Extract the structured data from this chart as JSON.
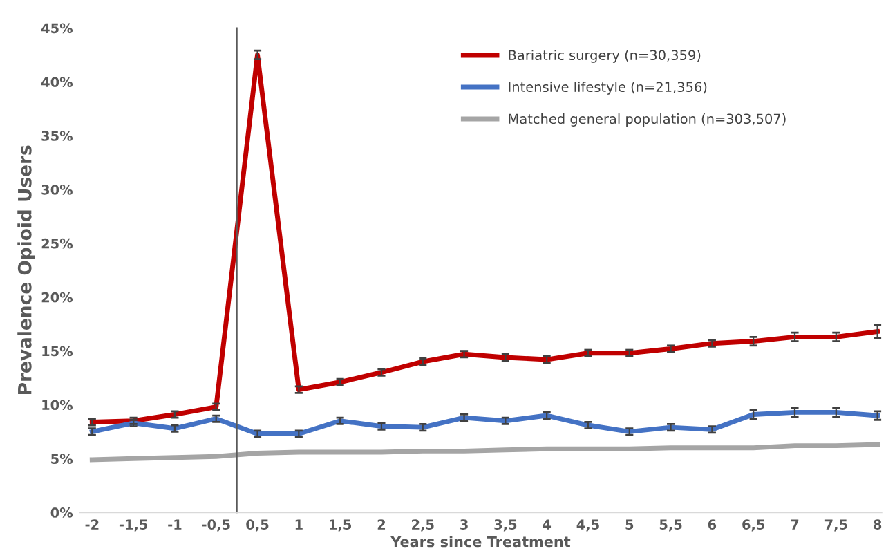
{
  "chart_data": {
    "type": "line",
    "xlabel": "Years since Treatment",
    "ylabel": "Prevalence Opioid Users",
    "categories": [
      "-2",
      "-1,5",
      "-1",
      "-0,5",
      "0,5",
      "1",
      "1,5",
      "2",
      "2,5",
      "3",
      "3,5",
      "4",
      "4,5",
      "5",
      "5,5",
      "6",
      "6,5",
      "7",
      "7,5",
      "8"
    ],
    "series": [
      {
        "name": "Bariatric surgery (n=30,359)",
        "color": "#c00000",
        "values": [
          8.4,
          8.5,
          9.1,
          9.8,
          42.5,
          11.4,
          12.1,
          13.0,
          14.0,
          14.7,
          14.4,
          14.2,
          14.8,
          14.8,
          15.2,
          15.7,
          15.9,
          16.3,
          16.3,
          16.8
        ],
        "errors": [
          0.3,
          0.3,
          0.3,
          0.3,
          0.4,
          0.3,
          0.3,
          0.3,
          0.3,
          0.3,
          0.3,
          0.3,
          0.3,
          0.3,
          0.3,
          0.3,
          0.4,
          0.4,
          0.4,
          0.6
        ]
      },
      {
        "name": "Intensive lifestyle (n=21,356)",
        "color": "#4472c4",
        "values": [
          7.5,
          8.3,
          7.8,
          8.7,
          7.3,
          7.3,
          8.5,
          8.0,
          7.9,
          8.8,
          8.5,
          9.0,
          8.1,
          7.5,
          7.9,
          7.7,
          9.1,
          9.3,
          9.3,
          9.0
        ],
        "errors": [
          0.3,
          0.3,
          0.3,
          0.3,
          0.3,
          0.3,
          0.3,
          0.3,
          0.3,
          0.3,
          0.3,
          0.3,
          0.3,
          0.3,
          0.3,
          0.3,
          0.4,
          0.4,
          0.4,
          0.4
        ]
      },
      {
        "name": "Matched general population (n=303,507)",
        "color": "#a5a5a5",
        "values": [
          4.9,
          5.0,
          5.1,
          5.2,
          5.5,
          5.6,
          5.6,
          5.6,
          5.7,
          5.7,
          5.8,
          5.9,
          5.9,
          5.9,
          6.0,
          6.0,
          6.0,
          6.2,
          6.2,
          6.3
        ]
      }
    ],
    "ylim": [
      0,
      45
    ],
    "yticks": [
      {
        "value": 0,
        "label": "0%"
      },
      {
        "value": 5,
        "label": "5%"
      },
      {
        "value": 10,
        "label": "10%"
      },
      {
        "value": 15,
        "label": "15%"
      },
      {
        "value": 20,
        "label": "20%"
      },
      {
        "value": 25,
        "label": "25%"
      },
      {
        "value": 30,
        "label": "30%"
      },
      {
        "value": 35,
        "label": "35%"
      },
      {
        "value": 40,
        "label": "40%"
      },
      {
        "value": 45,
        "label": "45%"
      }
    ],
    "grid": false,
    "legend": "top right",
    "marker": "none",
    "line_style": "solid"
  }
}
